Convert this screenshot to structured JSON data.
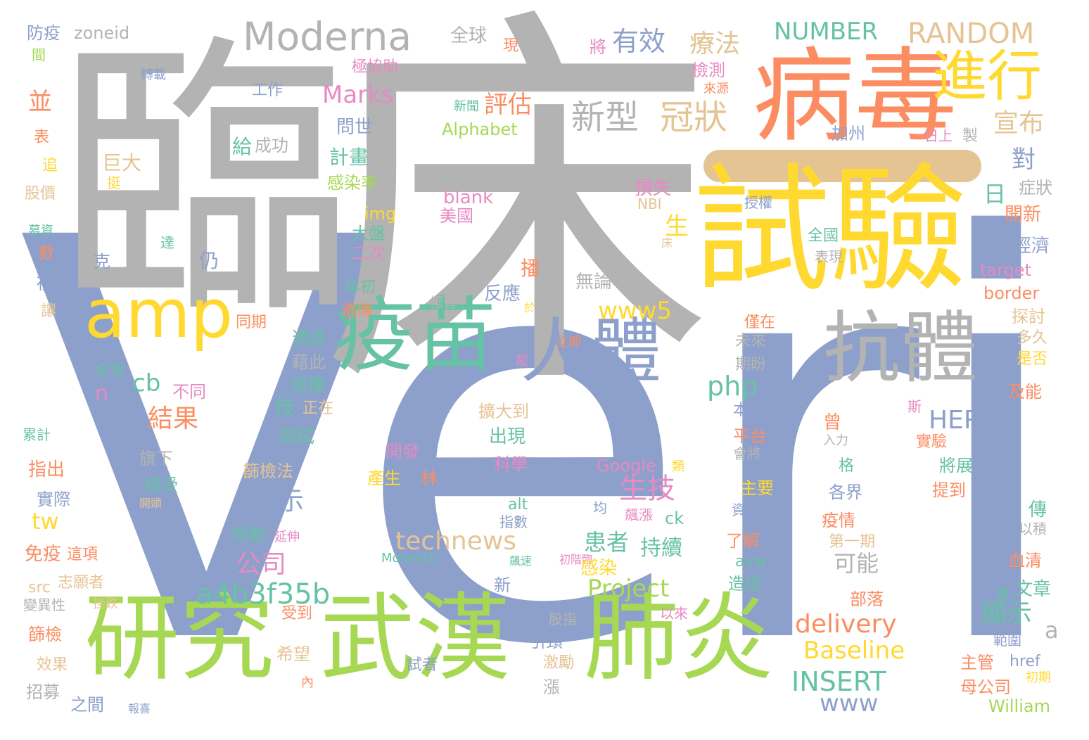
{
  "palette": {
    "gray": "#b3b3b3",
    "blue": "#8da0cb",
    "green": "#a6d854",
    "yellow": "#ffd92f",
    "orange": "#fc8d62",
    "teal": "#66c2a5",
    "tan": "#e5c494",
    "pink": "#e78ac3"
  },
  "bar_color": "#e5c494",
  "words": [
    {
      "text": "Verily",
      "color": "blue"
    },
    {
      "text": "臨",
      "color": "gray"
    },
    {
      "text": "床",
      "color": "gray"
    },
    {
      "text": "試驗",
      "color": "yellow"
    },
    {
      "text": "病毒",
      "color": "orange"
    },
    {
      "text": "研究",
      "color": "green"
    },
    {
      "text": "武漢",
      "color": "green"
    },
    {
      "text": "肺炎",
      "color": "green"
    },
    {
      "text": "疫苗",
      "color": "teal"
    },
    {
      "text": "抗體",
      "color": "gray"
    },
    {
      "text": "人體",
      "color": "blue"
    },
    {
      "text": "進行",
      "color": "yellow"
    },
    {
      "text": "amp",
      "color": "yellow"
    },
    {
      "text": "Moderna",
      "color": "gray"
    },
    {
      "text": "新型",
      "color": "gray"
    },
    {
      "text": "冠狀",
      "color": "tan"
    },
    {
      "text": "有效",
      "color": "blue"
    },
    {
      "text": "療法",
      "color": "tan"
    },
    {
      "text": "NUMBER",
      "color": "teal"
    },
    {
      "text": "RANDOM",
      "color": "tan"
    },
    {
      "text": "宣布",
      "color": "tan"
    },
    {
      "text": "評估",
      "color": "orange"
    },
    {
      "text": "Marks",
      "color": "pink"
    },
    {
      "text": "www5",
      "color": "yellow"
    },
    {
      "text": "php",
      "color": "teal"
    },
    {
      "text": "cb",
      "color": "teal"
    },
    {
      "text": "結果",
      "color": "orange"
    },
    {
      "text": "生技",
      "color": "pink"
    },
    {
      "text": "表示",
      "color": "blue"
    },
    {
      "text": "a4b3f35b",
      "color": "teal"
    },
    {
      "text": "technews",
      "color": "tan"
    },
    {
      "text": "公司",
      "color": "pink"
    },
    {
      "text": "Project",
      "color": "green"
    },
    {
      "text": "delivery",
      "color": "orange"
    },
    {
      "text": "Baseline",
      "color": "yellow"
    },
    {
      "text": "INSERT",
      "color": "teal"
    },
    {
      "text": "www",
      "color": "blue"
    },
    {
      "text": "HERE",
      "color": "blue"
    },
    {
      "text": "顯示",
      "color": "teal"
    },
    {
      "text": "患者",
      "color": "teal"
    },
    {
      "text": "持續",
      "color": "teal"
    },
    {
      "text": "可能",
      "color": "gray"
    },
    {
      "text": "tw",
      "color": "yellow"
    },
    {
      "text": "zoneid",
      "color": "gray"
    },
    {
      "text": "防疫",
      "color": "blue"
    },
    {
      "text": "間",
      "color": "green"
    },
    {
      "text": "全球",
      "color": "gray"
    },
    {
      "text": "現",
      "color": "orange"
    },
    {
      "text": "將",
      "color": "pink"
    },
    {
      "text": "轉載",
      "color": "blue"
    },
    {
      "text": "極協助",
      "color": "pink"
    },
    {
      "text": "檢測",
      "color": "pink"
    },
    {
      "text": "來源",
      "color": "orange"
    },
    {
      "text": "工作",
      "color": "blue"
    },
    {
      "text": "並",
      "color": "orange"
    },
    {
      "text": "新聞",
      "color": "teal"
    },
    {
      "text": "問世",
      "color": "blue"
    },
    {
      "text": "給",
      "color": "teal"
    },
    {
      "text": "成功",
      "color": "gray"
    },
    {
      "text": "表",
      "color": "orange"
    },
    {
      "text": "Alphabet",
      "color": "green"
    },
    {
      "text": "加州",
      "color": "blue"
    },
    {
      "text": "日上",
      "color": "pink"
    },
    {
      "text": "製",
      "color": "gray"
    },
    {
      "text": "巨大",
      "color": "tan"
    },
    {
      "text": "計畫",
      "color": "teal"
    },
    {
      "text": "追",
      "color": "yellow"
    },
    {
      "text": "挺",
      "color": "yellow"
    },
    {
      "text": "感染率",
      "color": "green"
    },
    {
      "text": "對",
      "color": "blue"
    },
    {
      "text": "股價",
      "color": "tan"
    },
    {
      "text": "blank",
      "color": "pink"
    },
    {
      "text": "損失",
      "color": "pink"
    },
    {
      "text": "授權",
      "color": "blue"
    },
    {
      "text": "NBI",
      "color": "tan"
    },
    {
      "text": "日",
      "color": "teal"
    },
    {
      "text": "症狀",
      "color": "gray"
    },
    {
      "text": "img",
      "color": "yellow"
    },
    {
      "text": "美國",
      "color": "pink"
    },
    {
      "text": "開新",
      "color": "orange"
    },
    {
      "text": "募資",
      "color": "teal"
    },
    {
      "text": "大盤",
      "color": "teal"
    },
    {
      "text": "生",
      "color": "yellow"
    },
    {
      "text": "全國",
      "color": "teal"
    },
    {
      "text": "達",
      "color": "teal"
    },
    {
      "text": "床",
      "color": "tan"
    },
    {
      "text": "數",
      "color": "orange"
    },
    {
      "text": "二次",
      "color": "pink"
    },
    {
      "text": "經濟",
      "color": "blue"
    },
    {
      "text": "克",
      "color": "blue"
    },
    {
      "text": "仍",
      "color": "blue"
    },
    {
      "text": "表現",
      "color": "gray"
    },
    {
      "text": "播",
      "color": "orange"
    },
    {
      "text": "target",
      "color": "pink"
    },
    {
      "text": "無論",
      "color": "gray"
    },
    {
      "text": "複",
      "color": "blue"
    },
    {
      "text": "年初",
      "color": "teal"
    },
    {
      "text": "標普",
      "color": "gray"
    },
    {
      "text": "反應",
      "color": "blue"
    },
    {
      "text": "border",
      "color": "orange"
    },
    {
      "text": "讓",
      "color": "tan"
    },
    {
      "text": "遺傳",
      "color": "orange"
    },
    {
      "text": "於",
      "color": "yellow"
    },
    {
      "text": "探討",
      "color": "tan"
    },
    {
      "text": "上",
      "color": "blue"
    },
    {
      "text": "同期",
      "color": "orange"
    },
    {
      "text": "僅在",
      "color": "orange"
    },
    {
      "text": "立即",
      "color": "orange"
    },
    {
      "text": "透過",
      "color": "teal"
    },
    {
      "text": "未來",
      "color": "gray"
    },
    {
      "text": "多久",
      "color": "tan"
    },
    {
      "text": "藉此",
      "color": "gray"
    },
    {
      "text": "期盼",
      "color": "gray"
    },
    {
      "text": "是否",
      "color": "yellow"
    },
    {
      "text": "名受",
      "color": "teal"
    },
    {
      "text": "蹤",
      "color": "pink"
    },
    {
      "text": "n",
      "color": "pink"
    },
    {
      "text": "不同",
      "color": "pink"
    },
    {
      "text": "接種",
      "color": "teal"
    },
    {
      "text": "首圖",
      "color": "blue"
    },
    {
      "text": "正在",
      "color": "tan"
    },
    {
      "text": "及能",
      "color": "orange"
    },
    {
      "text": "本文",
      "color": "blue"
    },
    {
      "text": "技",
      "color": "teal"
    },
    {
      "text": "擴大到",
      "color": "tan"
    },
    {
      "text": "斯",
      "color": "pink"
    },
    {
      "text": "曾",
      "color": "orange"
    },
    {
      "text": "累計",
      "color": "teal"
    },
    {
      "text": "測試",
      "color": "teal"
    },
    {
      "text": "出現",
      "color": "teal"
    },
    {
      "text": "平台",
      "color": "orange"
    },
    {
      "text": "入力",
      "color": "gray"
    },
    {
      "text": "實驗",
      "color": "orange"
    },
    {
      "text": "開發",
      "color": "pink"
    },
    {
      "text": "旗下",
      "color": "gray"
    },
    {
      "text": "會將",
      "color": "gray"
    },
    {
      "text": "指出",
      "color": "orange"
    },
    {
      "text": "科學",
      "color": "pink"
    },
    {
      "text": "Google",
      "color": "pink"
    },
    {
      "text": "類",
      "color": "yellow"
    },
    {
      "text": "格",
      "color": "teal"
    },
    {
      "text": "將展",
      "color": "teal"
    },
    {
      "text": "篩檢法",
      "color": "tan"
    },
    {
      "text": "產生",
      "color": "yellow"
    },
    {
      "text": "林",
      "color": "orange"
    },
    {
      "text": "接受",
      "color": "teal"
    },
    {
      "text": "主要",
      "color": "yellow"
    },
    {
      "text": "各界",
      "color": "blue"
    },
    {
      "text": "提到",
      "color": "orange"
    },
    {
      "text": "實際",
      "color": "blue"
    },
    {
      "text": "開頭",
      "color": "tan"
    },
    {
      "text": "alt",
      "color": "teal"
    },
    {
      "text": "均",
      "color": "blue"
    },
    {
      "text": "資金湧",
      "color": "blue"
    },
    {
      "text": "傳",
      "color": "teal"
    },
    {
      "text": "指數",
      "color": "blue"
    },
    {
      "text": "飆漲",
      "color": "pink"
    },
    {
      "text": "ck",
      "color": "teal"
    },
    {
      "text": "疫情",
      "color": "orange"
    },
    {
      "text": "以積",
      "color": "gray"
    },
    {
      "text": "啟動",
      "color": "teal"
    },
    {
      "text": "延伸",
      "color": "pink"
    },
    {
      "text": "了解",
      "color": "orange"
    },
    {
      "text": "第一期",
      "color": "tan"
    },
    {
      "text": "免疫",
      "color": "orange"
    },
    {
      "text": "這項",
      "color": "orange"
    },
    {
      "text": "MoneyDJ",
      "color": "teal"
    },
    {
      "text": "飆速",
      "color": "teal"
    },
    {
      "text": "初階臨",
      "color": "pink"
    },
    {
      "text": "avw",
      "color": "teal"
    },
    {
      "text": "血清",
      "color": "orange"
    },
    {
      "text": "src",
      "color": "tan"
    },
    {
      "text": "志願者",
      "color": "tan"
    },
    {
      "text": "感染",
      "color": "yellow"
    },
    {
      "text": "新",
      "color": "blue"
    },
    {
      "text": "造成",
      "color": "teal"
    },
    {
      "text": "文章",
      "color": "teal"
    },
    {
      "text": "變異性",
      "color": "gray"
    },
    {
      "text": "挫跌",
      "color": "tan"
    },
    {
      "text": "業",
      "color": "teal"
    },
    {
      "text": "部落",
      "color": "orange"
    },
    {
      "text": "股指",
      "color": "gray"
    },
    {
      "text": "受到",
      "color": "orange"
    },
    {
      "text": "以來",
      "color": "pink"
    },
    {
      "text": "篩檢",
      "color": "orange"
    },
    {
      "text": "a",
      "color": "gray"
    },
    {
      "text": "範圍",
      "color": "blue"
    },
    {
      "text": "引頸",
      "color": "blue"
    },
    {
      "text": "希望",
      "color": "tan"
    },
    {
      "text": "效果",
      "color": "tan"
    },
    {
      "text": "試者",
      "color": "blue"
    },
    {
      "text": "激勵",
      "color": "tan"
    },
    {
      "text": "主管",
      "color": "orange"
    },
    {
      "text": "href",
      "color": "blue"
    },
    {
      "text": "初期",
      "color": "yellow"
    },
    {
      "text": "內",
      "color": "orange"
    },
    {
      "text": "漲",
      "color": "gray"
    },
    {
      "text": "招募",
      "color": "gray"
    },
    {
      "text": "母公司",
      "color": "orange"
    },
    {
      "text": "之間",
      "color": "blue"
    },
    {
      "text": "報喜",
      "color": "blue"
    },
    {
      "text": "William",
      "color": "green"
    }
  ]
}
